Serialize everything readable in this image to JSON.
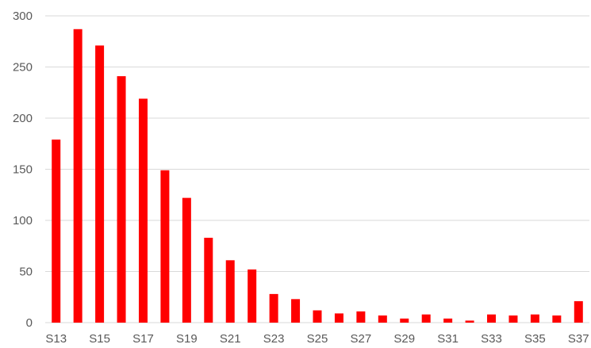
{
  "chart_data": {
    "type": "bar",
    "title": "",
    "xlabel": "",
    "ylabel": "",
    "ylim": [
      0,
      300
    ],
    "yticks": [
      0,
      50,
      100,
      150,
      200,
      250,
      300
    ],
    "grid": true,
    "legend": "none",
    "bar_color": "#ff0000",
    "categories": [
      "S13",
      "S14",
      "S15",
      "S16",
      "S17",
      "S18",
      "S19",
      "S20",
      "S21",
      "S22",
      "S23",
      "S24",
      "S25",
      "S26",
      "S27",
      "S28",
      "S29",
      "S30",
      "S31",
      "S32",
      "S33",
      "S34",
      "S35",
      "S36",
      "S37"
    ],
    "x_tick_labels": [
      "S13",
      "",
      "S15",
      "",
      "S17",
      "",
      "S19",
      "",
      "S21",
      "",
      "S23",
      "",
      "S25",
      "",
      "S27",
      "",
      "S29",
      "",
      "S31",
      "",
      "S33",
      "",
      "S35",
      "",
      "S37"
    ],
    "values": [
      179,
      287,
      271,
      241,
      219,
      149,
      122,
      83,
      61,
      52,
      28,
      23,
      12,
      9,
      11,
      7,
      4,
      8,
      4,
      2,
      8,
      7,
      8,
      7,
      21
    ]
  }
}
